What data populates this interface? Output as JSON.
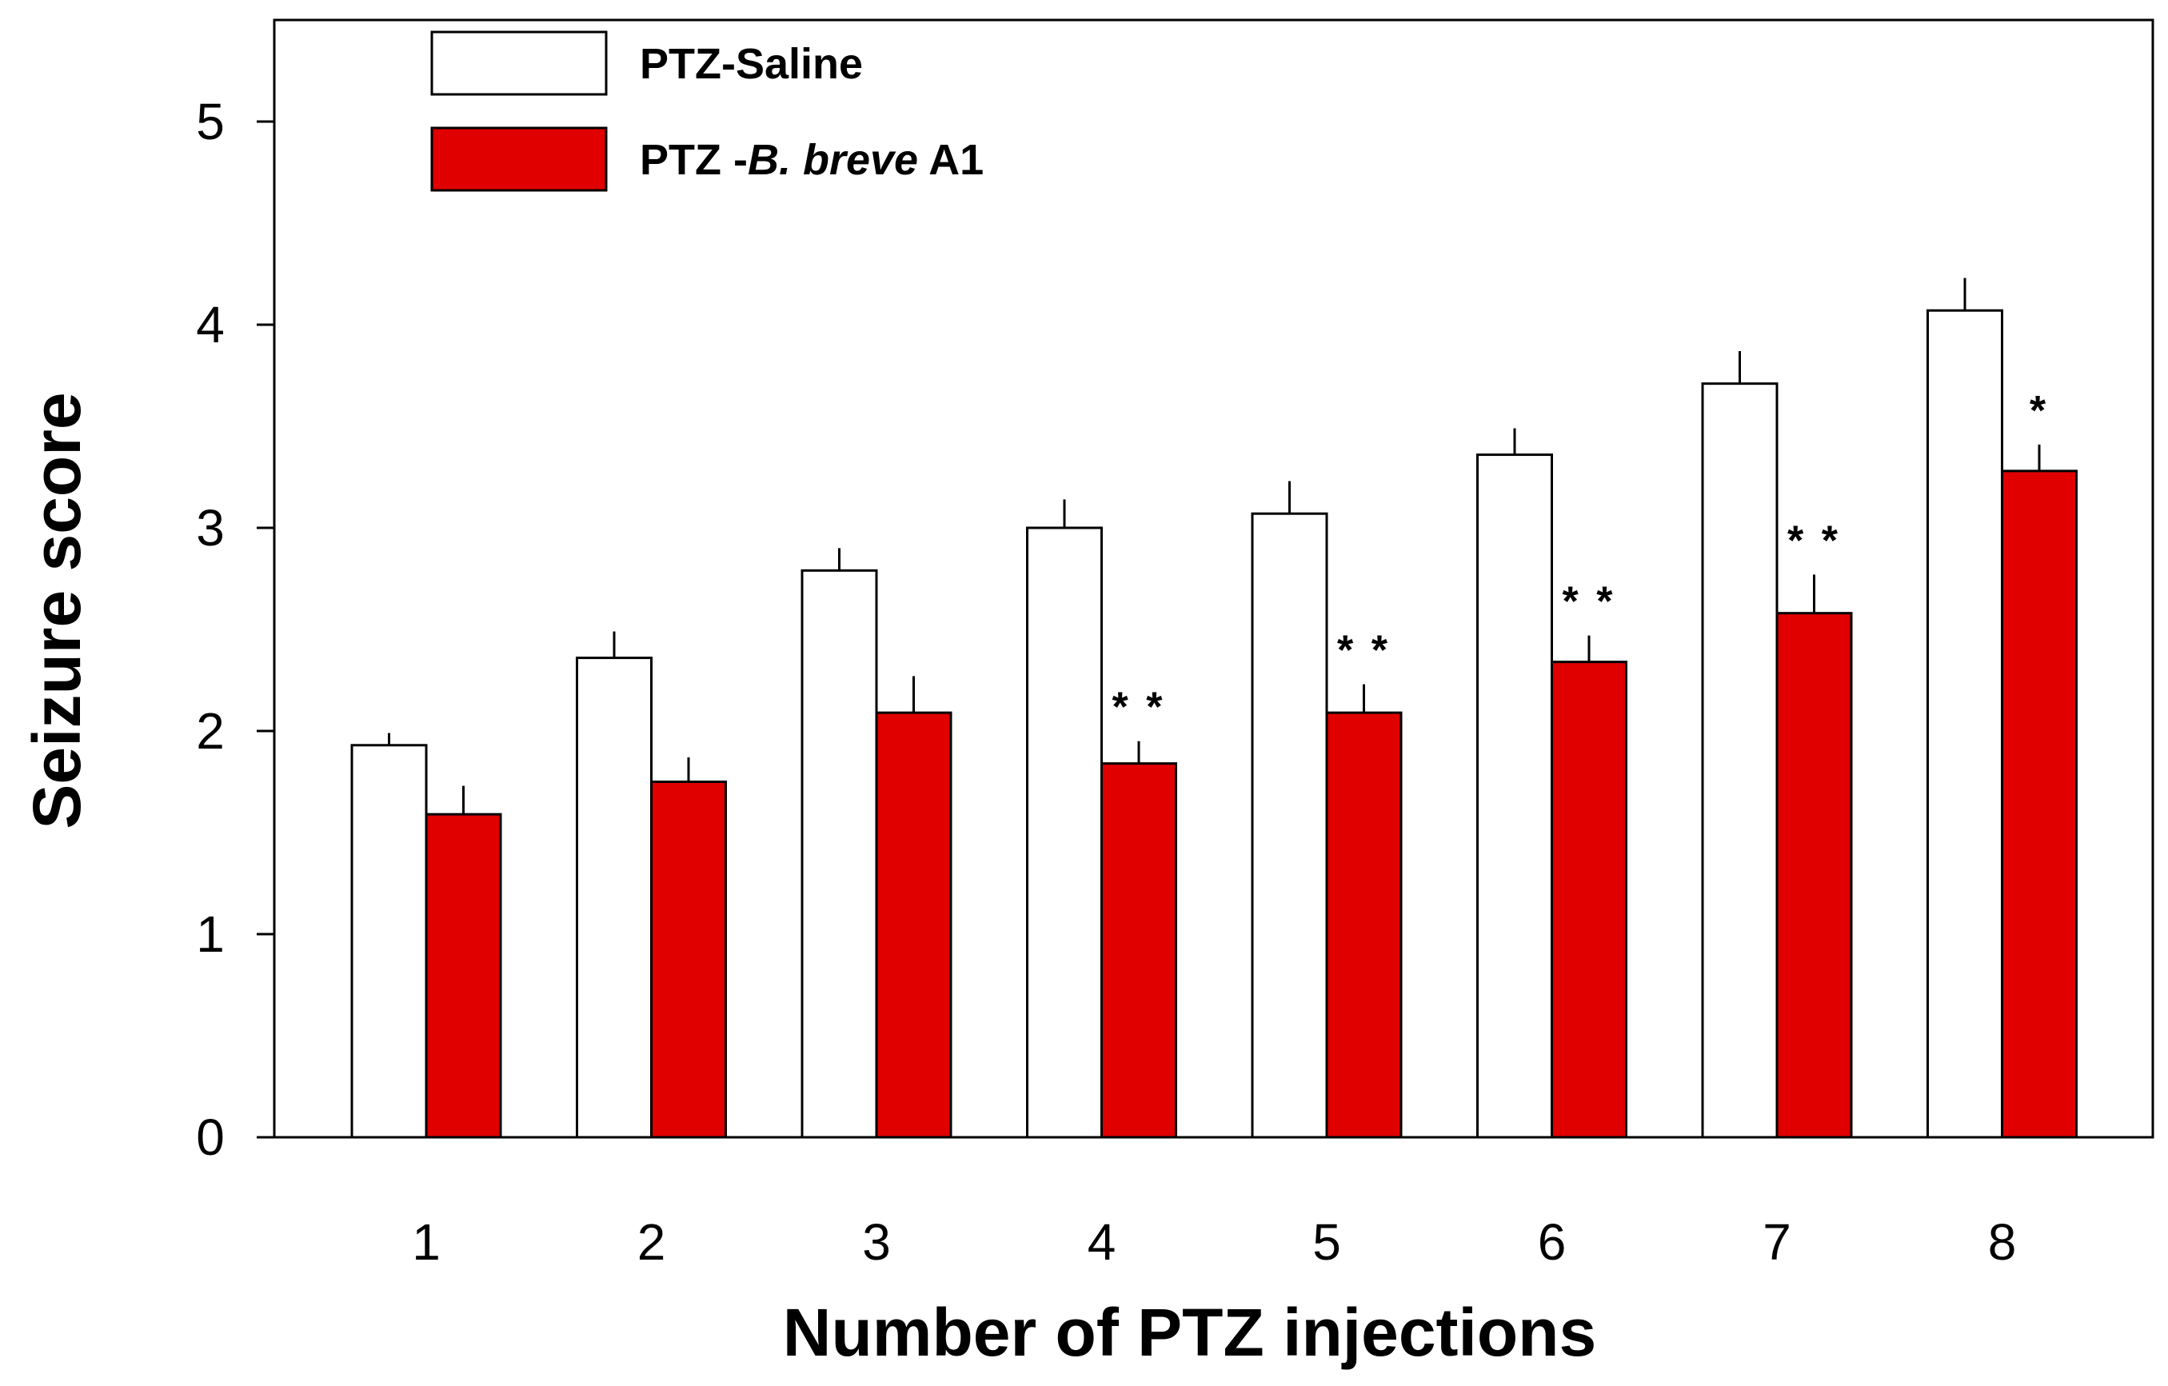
{
  "chart_data": {
    "type": "bar",
    "title": "",
    "xlabel": "Number of PTZ injections",
    "ylabel": "Seizure score",
    "ylim": [
      0,
      5.5
    ],
    "yticks": [
      "0",
      "1",
      "2",
      "3",
      "4",
      "5"
    ],
    "categories": [
      "1",
      "2",
      "3",
      "4",
      "5",
      "6",
      "7",
      "8"
    ],
    "series": [
      {
        "name": "PTZ-Saline",
        "legend_prefix": "PTZ-Saline",
        "legend_italic": "",
        "legend_suffix": "",
        "color": "#ffffff",
        "values": [
          1.93,
          2.36,
          2.79,
          3.0,
          3.07,
          3.36,
          3.71,
          4.07
        ],
        "errors": [
          0.06,
          0.13,
          0.11,
          0.14,
          0.16,
          0.13,
          0.16,
          0.16
        ]
      },
      {
        "name": "PTZ -B. breve A1",
        "legend_prefix": "PTZ -",
        "legend_italic": "B. breve",
        "legend_suffix": " A1",
        "color": "#e00000",
        "values": [
          1.59,
          1.75,
          2.09,
          1.84,
          2.09,
          2.34,
          2.58,
          3.28
        ],
        "errors": [
          0.14,
          0.12,
          0.18,
          0.11,
          0.14,
          0.13,
          0.19,
          0.13
        ]
      }
    ],
    "significance": [
      "",
      "",
      "",
      "* *",
      "* *",
      "* *",
      "* *",
      "*"
    ],
    "legend_position": "top-left"
  }
}
